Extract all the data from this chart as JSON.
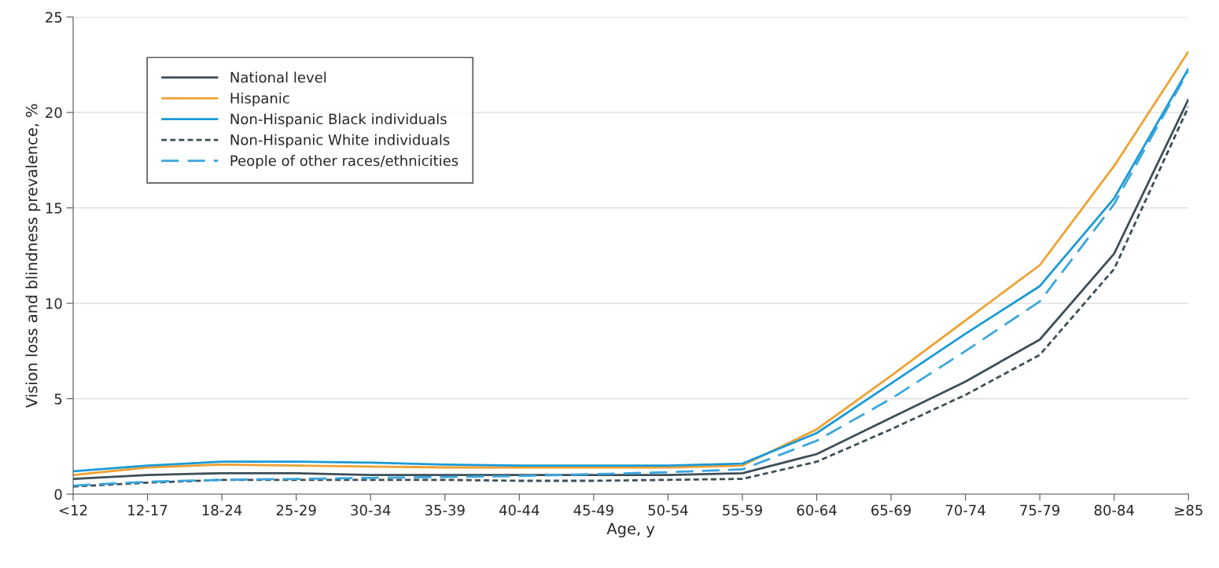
{
  "chart_data": {
    "type": "line",
    "xlabel": "Age, y",
    "ylabel": "Vision loss and blindness prevalence, %",
    "categories": [
      "<12",
      "12-17",
      "18-24",
      "25-29",
      "30-34",
      "35-39",
      "40-44",
      "45-49",
      "50-54",
      "55-59",
      "60-64",
      "65-69",
      "70-74",
      "75-79",
      "80-84",
      "≥85"
    ],
    "ylim": [
      0,
      25
    ],
    "yticks": [
      0,
      5,
      10,
      15,
      20,
      25
    ],
    "grid": "y",
    "legend": "top left",
    "marker": "none",
    "series": [
      {
        "name": "National level",
        "color": "#3d4f57",
        "line_style": "solid",
        "values": [
          0.8,
          1.0,
          1.1,
          1.1,
          1.0,
          1.0,
          1.0,
          1.0,
          1.0,
          1.1,
          2.1,
          4.0,
          5.9,
          8.1,
          12.6,
          20.7
        ]
      },
      {
        "name": "Hispanic",
        "color": "#f0a030",
        "line_style": "solid",
        "values": [
          1.0,
          1.4,
          1.55,
          1.5,
          1.45,
          1.4,
          1.4,
          1.4,
          1.4,
          1.5,
          3.4,
          6.2,
          9.1,
          12.0,
          17.2,
          23.2
        ]
      },
      {
        "name": "Non-Hispanic Black individuals",
        "color": "#1a9ad6",
        "line_style": "solid",
        "values": [
          1.2,
          1.5,
          1.7,
          1.7,
          1.65,
          1.55,
          1.5,
          1.5,
          1.5,
          1.6,
          3.2,
          5.8,
          8.4,
          10.9,
          15.5,
          22.3
        ]
      },
      {
        "name": "Non-Hispanic White individuals",
        "color": "#3d4f57",
        "line_style": "dotted",
        "values": [
          0.4,
          0.6,
          0.75,
          0.75,
          0.75,
          0.75,
          0.7,
          0.7,
          0.75,
          0.8,
          1.7,
          3.4,
          5.2,
          7.3,
          11.8,
          20.3
        ]
      },
      {
        "name": "People of other races/ethnicities",
        "color": "#3aa6dc",
        "line_style": "dashed",
        "values": [
          0.45,
          0.65,
          0.75,
          0.8,
          0.85,
          0.9,
          0.95,
          1.05,
          1.15,
          1.3,
          2.8,
          5.0,
          7.5,
          10.1,
          15.2,
          22.2
        ]
      }
    ]
  }
}
